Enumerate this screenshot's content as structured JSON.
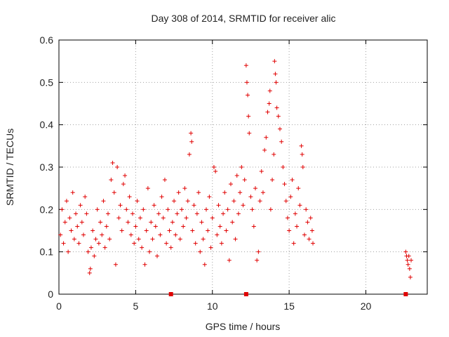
{
  "chart_data": {
    "type": "scatter",
    "title": "Day 308 of 2014, SRMTID for receiver alic",
    "xlabel": "GPS time / hours",
    "ylabel": "SRMTID / TECUs",
    "xlim": [
      0,
      24
    ],
    "ylim": [
      0,
      0.6
    ],
    "grid": true,
    "marker": "plus",
    "color": "#e00000",
    "x_ticks": [
      "0",
      "5",
      "10",
      "15",
      "20"
    ],
    "y_ticks": [
      "0",
      "0.1",
      "0.2",
      "0.3",
      "0.4",
      "0.5",
      "0.6"
    ],
    "series": [
      {
        "name": "SRMTID",
        "points": [
          [
            0.1,
            0.14
          ],
          [
            0.2,
            0.2
          ],
          [
            0.3,
            0.12
          ],
          [
            0.4,
            0.17
          ],
          [
            0.5,
            0.22
          ],
          [
            0.6,
            0.1
          ],
          [
            0.7,
            0.18
          ],
          [
            0.8,
            0.15
          ],
          [
            0.9,
            0.24
          ],
          [
            1.0,
            0.13
          ],
          [
            1.1,
            0.19
          ],
          [
            1.2,
            0.16
          ],
          [
            1.3,
            0.12
          ],
          [
            1.4,
            0.21
          ],
          [
            1.5,
            0.17
          ],
          [
            1.6,
            0.14
          ],
          [
            1.7,
            0.23
          ],
          [
            1.8,
            0.19
          ],
          [
            1.9,
            0.1
          ],
          [
            2.0,
            0.05
          ],
          [
            2.05,
            0.06
          ],
          [
            2.1,
            0.11
          ],
          [
            2.2,
            0.15
          ],
          [
            2.3,
            0.09
          ],
          [
            2.4,
            0.13
          ],
          [
            2.5,
            0.2
          ],
          [
            2.6,
            0.12
          ],
          [
            2.7,
            0.17
          ],
          [
            2.8,
            0.14
          ],
          [
            2.9,
            0.22
          ],
          [
            3.0,
            0.11
          ],
          [
            3.1,
            0.16
          ],
          [
            3.2,
            0.19
          ],
          [
            3.3,
            0.13
          ],
          [
            3.4,
            0.27
          ],
          [
            3.5,
            0.31
          ],
          [
            3.6,
            0.24
          ],
          [
            3.7,
            0.07
          ],
          [
            3.8,
            0.3
          ],
          [
            3.9,
            0.18
          ],
          [
            4.0,
            0.21
          ],
          [
            4.1,
            0.15
          ],
          [
            4.2,
            0.26
          ],
          [
            4.3,
            0.28
          ],
          [
            4.4,
            0.2
          ],
          [
            4.5,
            0.17
          ],
          [
            4.6,
            0.23
          ],
          [
            4.7,
            0.14
          ],
          [
            4.8,
            0.19
          ],
          [
            4.9,
            0.12
          ],
          [
            5.0,
            0.16
          ],
          [
            5.1,
            0.22
          ],
          [
            5.2,
            0.13
          ],
          [
            5.3,
            0.18
          ],
          [
            5.4,
            0.11
          ],
          [
            5.5,
            0.2
          ],
          [
            5.6,
            0.07
          ],
          [
            5.7,
            0.15
          ],
          [
            5.8,
            0.25
          ],
          [
            5.9,
            0.1
          ],
          [
            6.0,
            0.17
          ],
          [
            6.1,
            0.13
          ],
          [
            6.2,
            0.21
          ],
          [
            6.3,
            0.16
          ],
          [
            6.4,
            0.09
          ],
          [
            6.5,
            0.19
          ],
          [
            6.6,
            0.14
          ],
          [
            6.7,
            0.23
          ],
          [
            6.8,
            0.18
          ],
          [
            6.9,
            0.27
          ],
          [
            7.0,
            0.12
          ],
          [
            7.1,
            0.2
          ],
          [
            7.2,
            0.15
          ],
          [
            7.3,
            0.11
          ],
          [
            7.4,
            0.17
          ],
          [
            7.5,
            0.22
          ],
          [
            7.6,
            0.14
          ],
          [
            7.7,
            0.19
          ],
          [
            7.8,
            0.24
          ],
          [
            7.9,
            0.13
          ],
          [
            8.0,
            0.2
          ],
          [
            8.1,
            0.16
          ],
          [
            8.2,
            0.25
          ],
          [
            8.3,
            0.18
          ],
          [
            8.4,
            0.22
          ],
          [
            8.5,
            0.33
          ],
          [
            8.6,
            0.38
          ],
          [
            8.65,
            0.36
          ],
          [
            8.7,
            0.15
          ],
          [
            8.8,
            0.21
          ],
          [
            8.9,
            0.12
          ],
          [
            9.0,
            0.19
          ],
          [
            9.1,
            0.24
          ],
          [
            9.2,
            0.1
          ],
          [
            9.3,
            0.17
          ],
          [
            9.4,
            0.13
          ],
          [
            9.5,
            0.07
          ],
          [
            9.6,
            0.2
          ],
          [
            9.7,
            0.15
          ],
          [
            9.8,
            0.23
          ],
          [
            9.9,
            0.11
          ],
          [
            10.0,
            0.18
          ],
          [
            10.1,
            0.3
          ],
          [
            10.2,
            0.29
          ],
          [
            10.3,
            0.14
          ],
          [
            10.4,
            0.21
          ],
          [
            10.5,
            0.16
          ],
          [
            10.6,
            0.12
          ],
          [
            10.7,
            0.19
          ],
          [
            10.8,
            0.24
          ],
          [
            10.9,
            0.15
          ],
          [
            11.0,
            0.2
          ],
          [
            11.1,
            0.08
          ],
          [
            11.2,
            0.26
          ],
          [
            11.3,
            0.17
          ],
          [
            11.4,
            0.22
          ],
          [
            11.5,
            0.13
          ],
          [
            11.6,
            0.28
          ],
          [
            11.7,
            0.19
          ],
          [
            11.8,
            0.24
          ],
          [
            11.9,
            0.3
          ],
          [
            12.0,
            0.21
          ],
          [
            12.1,
            0.27
          ],
          [
            12.2,
            0.54
          ],
          [
            12.25,
            0.5
          ],
          [
            12.3,
            0.47
          ],
          [
            12.35,
            0.42
          ],
          [
            12.4,
            0.38
          ],
          [
            12.5,
            0.23
          ],
          [
            12.6,
            0.2
          ],
          [
            12.7,
            0.16
          ],
          [
            12.8,
            0.25
          ],
          [
            12.9,
            0.08
          ],
          [
            13.0,
            0.1
          ],
          [
            13.1,
            0.22
          ],
          [
            13.2,
            0.29
          ],
          [
            13.3,
            0.24
          ],
          [
            13.4,
            0.34
          ],
          [
            13.5,
            0.37
          ],
          [
            13.6,
            0.43
          ],
          [
            13.7,
            0.45
          ],
          [
            13.75,
            0.48
          ],
          [
            13.8,
            0.2
          ],
          [
            13.9,
            0.27
          ],
          [
            14.0,
            0.33
          ],
          [
            14.05,
            0.55
          ],
          [
            14.1,
            0.52
          ],
          [
            14.15,
            0.5
          ],
          [
            14.2,
            0.44
          ],
          [
            14.3,
            0.42
          ],
          [
            14.4,
            0.39
          ],
          [
            14.5,
            0.36
          ],
          [
            14.6,
            0.3
          ],
          [
            14.7,
            0.26
          ],
          [
            14.8,
            0.22
          ],
          [
            14.9,
            0.18
          ],
          [
            15.0,
            0.15
          ],
          [
            15.1,
            0.23
          ],
          [
            15.2,
            0.27
          ],
          [
            15.3,
            0.12
          ],
          [
            15.4,
            0.19
          ],
          [
            15.5,
            0.16
          ],
          [
            15.6,
            0.25
          ],
          [
            15.7,
            0.21
          ],
          [
            15.8,
            0.35
          ],
          [
            15.85,
            0.33
          ],
          [
            15.9,
            0.3
          ],
          [
            16.0,
            0.14
          ],
          [
            16.1,
            0.2
          ],
          [
            16.2,
            0.17
          ],
          [
            16.3,
            0.13
          ],
          [
            16.4,
            0.18
          ],
          [
            16.5,
            0.15
          ],
          [
            16.55,
            0.12
          ],
          [
            22.6,
            0.1
          ],
          [
            22.65,
            0.09
          ],
          [
            22.7,
            0.08
          ],
          [
            22.75,
            0.07
          ],
          [
            22.8,
            0.09
          ],
          [
            22.85,
            0.06
          ],
          [
            22.9,
            0.04
          ],
          [
            22.95,
            0.08
          ]
        ]
      }
    ],
    "zero_markers": [
      7.3,
      12.2,
      22.6
    ]
  }
}
